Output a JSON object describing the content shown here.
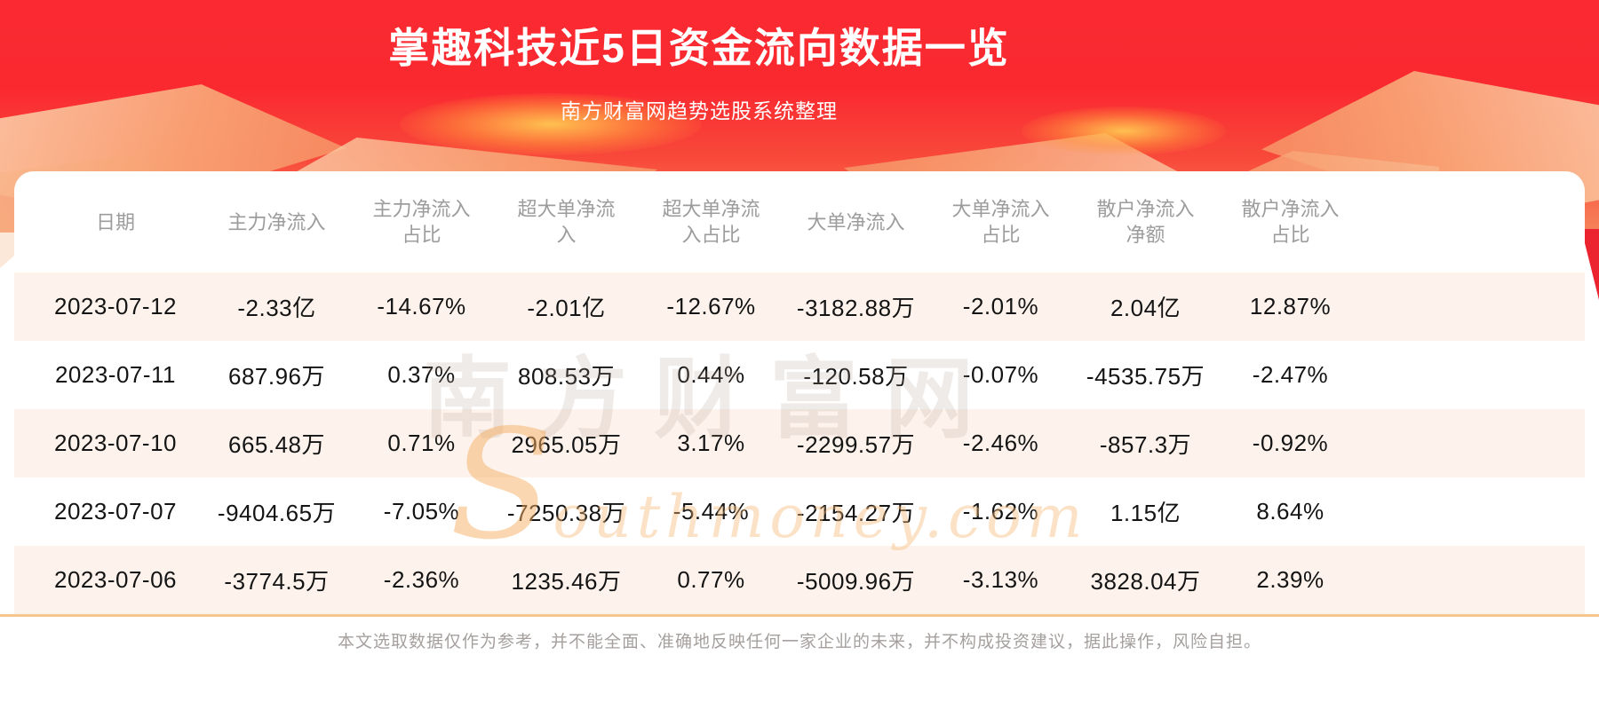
{
  "header": {
    "title": "掌趣科技近5日资金流向数据一览",
    "subtitle": "南方财富网趋势选股系统整理"
  },
  "table": {
    "columns": [
      "日期",
      "主力净流入",
      "主力净流入占比",
      "超大单净流入",
      "超大单净流入占比",
      "大单净流入",
      "大单净流入占比",
      "散户净流入净额",
      "散户净流入占比"
    ],
    "rows": [
      [
        "2023-07-12",
        "-2.33亿",
        "-14.67%",
        "-2.01亿",
        "-12.67%",
        "-3182.88万",
        "-2.01%",
        "2.04亿",
        "12.87%"
      ],
      [
        "2023-07-11",
        "687.96万",
        "0.37%",
        "808.53万",
        "0.44%",
        "-120.58万",
        "-0.07%",
        "-4535.75万",
        "-2.47%"
      ],
      [
        "2023-07-10",
        "665.48万",
        "0.71%",
        "2965.05万",
        "3.17%",
        "-2299.57万",
        "-2.46%",
        "-857.3万",
        "-0.92%"
      ],
      [
        "2023-07-07",
        "-9404.65万",
        "-7.05%",
        "-7250.38万",
        "-5.44%",
        "-2154.27万",
        "-1.62%",
        "1.15亿",
        "8.64%"
      ],
      [
        "2023-07-06",
        "-3774.5万",
        "-2.36%",
        "1235.46万",
        "0.77%",
        "-5009.96万",
        "-3.13%",
        "3828.04万",
        "2.39%"
      ]
    ]
  },
  "watermark": {
    "cjk": "南方财富网",
    "script_s": "S",
    "script_rest": "outhmoney.com"
  },
  "footer": {
    "disclaimer": "本文选取数据仅作为参考，并不能全面、准确地反映任何一家企业的未来，并不构成投资建议，据此操作，风险自担。"
  },
  "colors": {
    "banner_red_top": "#fb2a32",
    "banner_orange_bottom": "#f6875c",
    "stripe_cream": "#fdf3ec",
    "divider_orange": "#f6c78c",
    "header_gray": "#9c9c9c",
    "text_dark": "#141414",
    "title_white": "#ffffff"
  },
  "chart_data": {
    "type": "table",
    "title": "掌趣科技近5日资金流向数据一览",
    "subtitle": "南方财富网趋势选股系统整理",
    "columns": [
      "日期",
      "主力净流入",
      "主力净流入占比",
      "超大单净流入",
      "超大单净流入占比",
      "大单净流入",
      "大单净流入占比",
      "散户净流入净额",
      "散户净流入占比"
    ],
    "rows": [
      [
        "2023-07-12",
        "-2.33亿",
        "-14.67%",
        "-2.01亿",
        "-12.67%",
        "-3182.88万",
        "-2.01%",
        "2.04亿",
        "12.87%"
      ],
      [
        "2023-07-11",
        "687.96万",
        "0.37%",
        "808.53万",
        "0.44%",
        "-120.58万",
        "-0.07%",
        "-4535.75万",
        "-2.47%"
      ],
      [
        "2023-07-10",
        "665.48万",
        "0.71%",
        "2965.05万",
        "3.17%",
        "-2299.57万",
        "-2.46%",
        "-857.3万",
        "-0.92%"
      ],
      [
        "2023-07-07",
        "-9404.65万",
        "-7.05%",
        "-7250.38万",
        "-5.44%",
        "-2154.27万",
        "-1.62%",
        "1.15亿",
        "8.64%"
      ],
      [
        "2023-07-06",
        "-3774.5万",
        "-2.36%",
        "1235.46万",
        "0.77%",
        "-5009.96万",
        "-3.13%",
        "3828.04万",
        "2.39%"
      ]
    ]
  }
}
